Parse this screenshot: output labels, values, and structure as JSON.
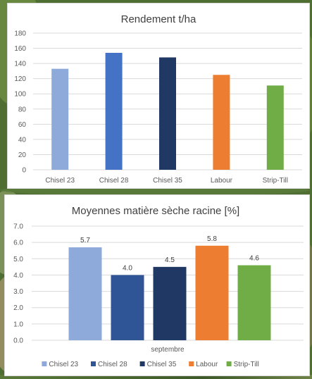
{
  "chart_data": [
    {
      "type": "bar",
      "title": "Rendement t/ha",
      "categories": [
        "Chisel 23",
        "Chisel 28",
        "Chisel 35",
        "Labour",
        "Strip-Till"
      ],
      "values": [
        133,
        154,
        148,
        125,
        111
      ],
      "colors": [
        "#8eaadb",
        "#4472c4",
        "#203864",
        "#ed7d31",
        "#70ad47"
      ],
      "ylim": [
        0,
        180
      ],
      "yticks": [
        0,
        20,
        40,
        60,
        80,
        100,
        120,
        140,
        160,
        180
      ],
      "grid": true,
      "legend": "none"
    },
    {
      "type": "bar",
      "title": "Moyennes matière sèche racine [%]",
      "categories": [
        "septembre"
      ],
      "series": [
        {
          "name": "Chisel 23",
          "values": [
            5.7
          ],
          "color": "#8eaadb"
        },
        {
          "name": "Chisel 28",
          "values": [
            4.0
          ],
          "color": "#2f5597"
        },
        {
          "name": "Chisel 35",
          "values": [
            4.5
          ],
          "color": "#203864"
        },
        {
          "name": "Labour",
          "values": [
            5.8
          ],
          "color": "#ed7d31"
        },
        {
          "name": "Strip-Till",
          "values": [
            4.6
          ],
          "color": "#70ad47"
        }
      ],
      "data_labels": [
        "5.7",
        "4.0",
        "4.5",
        "5.8",
        "4.6"
      ],
      "ylim": [
        0,
        7
      ],
      "yticks": [
        "0.0",
        "1.0",
        "2.0",
        "3.0",
        "4.0",
        "5.0",
        "6.0",
        "7.0"
      ],
      "grid": true,
      "legend": "bottom"
    }
  ]
}
